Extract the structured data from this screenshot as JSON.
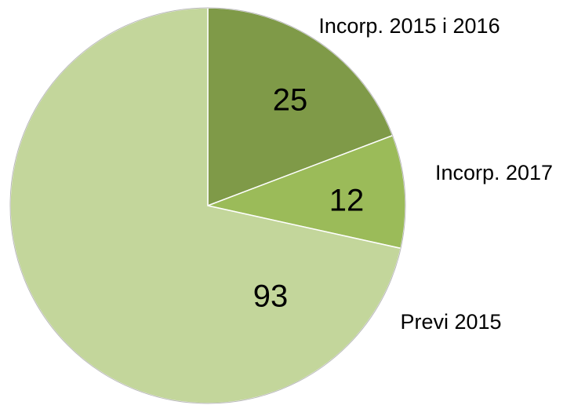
{
  "chart_data": {
    "type": "pie",
    "categories": [
      "Incorp. 2015 i 2016",
      "Incorp. 2017",
      "Previ 2015"
    ],
    "values": [
      25,
      12,
      93
    ],
    "colors": [
      "#7f9a48",
      "#9bbb59",
      "#c3d69b"
    ]
  }
}
